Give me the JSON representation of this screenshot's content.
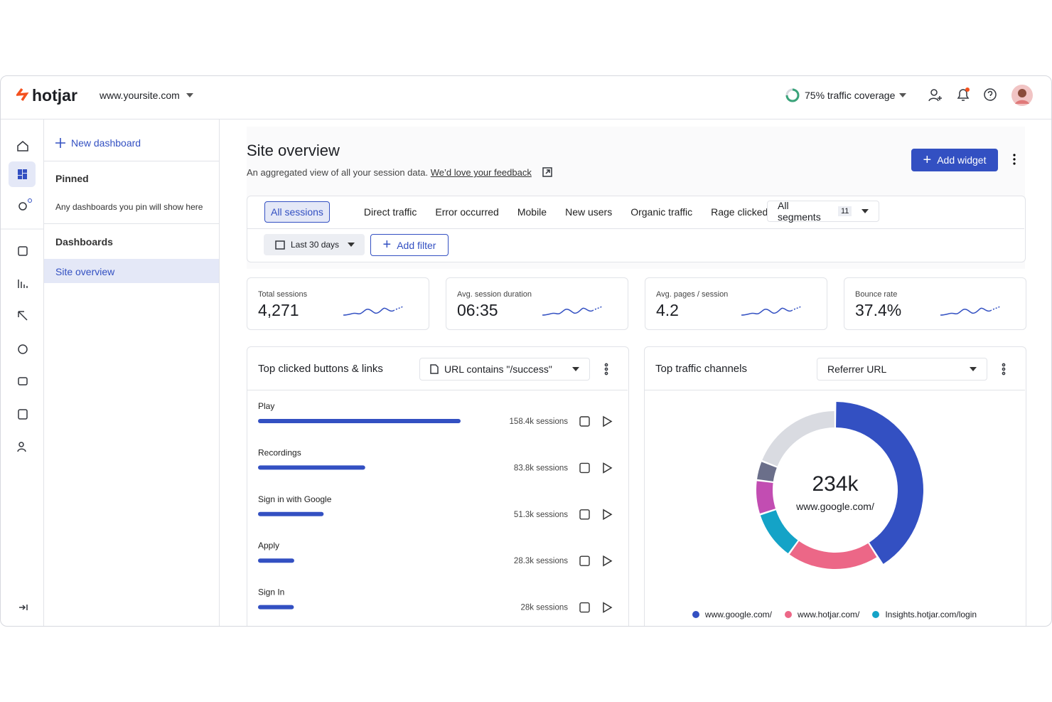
{
  "header": {
    "logo": "hotjar",
    "site": "www.yoursite.com",
    "coverage": "75% traffic coverage"
  },
  "sidebar": {
    "new_dashboard": "New dashboard",
    "pinned": "Pinned",
    "pinned_note": "Any dashboards you pin will show here",
    "dashboards": "Dashboards",
    "active": "Site overview"
  },
  "page": {
    "title": "Site overview",
    "subtitle": "An aggregated view of all your session data.",
    "feedback": "We’d love your feedback",
    "add_widget": "Add widget"
  },
  "filters": {
    "tabs": [
      "All sessions",
      "Direct traffic",
      "Error occurred",
      "Mobile",
      "New users",
      "Organic traffic",
      "Rage clicked"
    ],
    "all_segments": "All segments",
    "segment_count": 11,
    "date": "Last 30 days",
    "add_filter": "Add filter"
  },
  "metrics": [
    {
      "label": "Total sessions",
      "value": "4,271"
    },
    {
      "label": "Avg. session duration",
      "value": "06:35"
    },
    {
      "label": "Avg. pages / session",
      "value": "4.2"
    },
    {
      "label": "Bounce rate",
      "value": "37.4%"
    }
  ],
  "clicked": {
    "title": "Top clicked buttons & links",
    "filter": "URL contains \"/success\"",
    "color": "#3350c2",
    "rows": [
      {
        "label": "Play",
        "value": 158400,
        "value_label": "158.4k sessions"
      },
      {
        "label": "Recordings",
        "value": 83800,
        "value_label": "83.8k sessions"
      },
      {
        "label": "Sign in with Google",
        "value": 51300,
        "value_label": "51.3k sessions"
      },
      {
        "label": "Apply",
        "value": 28300,
        "value_label": "28.3k sessions"
      },
      {
        "label": "Sign In",
        "value": 28000,
        "value_label": "28k sessions"
      }
    ]
  },
  "channels": {
    "title": "Top traffic channels",
    "dropdown": "Referrer URL",
    "total": "234k",
    "total_label": "www.google.com/",
    "segments": [
      {
        "value": 41,
        "color": "#3350c2"
      },
      {
        "value": 19,
        "color": "#ec6787"
      },
      {
        "value": 10,
        "color": "#14a3c7"
      },
      {
        "value": 7,
        "color": "#c24db2"
      },
      {
        "value": 4,
        "color": "#6b6f8a"
      },
      {
        "value": 19,
        "color": "#d9dbe1"
      }
    ],
    "legend": [
      {
        "label": "www.google.com/",
        "color": "#3350c2"
      },
      {
        "label": "www.hotjar.com/",
        "color": "#ec6787"
      },
      {
        "label": "Insights.hotjar.com/login",
        "color": "#14a3c7"
      }
    ]
  }
}
